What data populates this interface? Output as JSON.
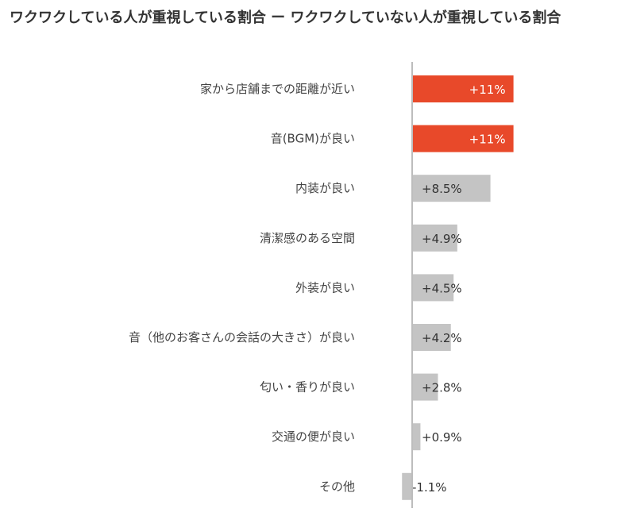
{
  "chart_data": {
    "type": "bar",
    "orientation": "horizontal",
    "title": "ワクワクしている人が重視している割合 ー ワクワクしていない人が重視している割合",
    "categories": [
      "家から店舗までの距離が近い",
      "音(BGM)が良い",
      "内装が良い",
      "清潔感のある空間",
      "外装が良い",
      "音（他のお客さんの会話の大きさ）が良い",
      "匂い・香りが良い",
      "交通の便が良い",
      "その他"
    ],
    "values": [
      11,
      11,
      8.5,
      4.9,
      4.5,
      4.2,
      2.8,
      0.9,
      -1.1
    ],
    "value_labels": [
      "+11%",
      "+11%",
      "+8.5%",
      "+4.9%",
      "+4.5%",
      "+4.2%",
      "+2.8%",
      "+0.9%",
      "-1.1%"
    ],
    "highlighted": [
      true,
      true,
      false,
      false,
      false,
      false,
      false,
      false,
      false
    ],
    "unit": "%",
    "grid": false,
    "legend": "none",
    "colors": {
      "highlight": "#e8492a",
      "default": "#c4c4c4",
      "axis": "#bdbdbd",
      "highlight_label": "#ffffff",
      "default_label": "#333333"
    }
  }
}
